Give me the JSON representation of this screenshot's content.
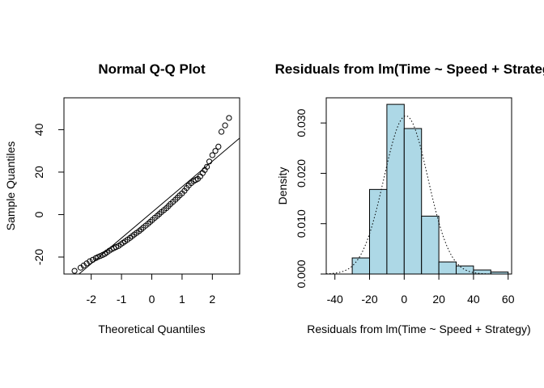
{
  "chart_data": [
    {
      "type": "scatter",
      "title": "Normal Q-Q Plot",
      "xlabel": "Theoretical Quantiles",
      "ylabel": "Sample Quantiles",
      "xlim": [
        -2.9,
        2.9
      ],
      "ylim": [
        -28,
        55
      ],
      "x_ticks": [
        -2,
        -1,
        0,
        1,
        2
      ],
      "x_tick_labels": [
        "-2",
        "-1",
        "0",
        "1",
        "2"
      ],
      "y_ticks": [
        -20,
        0,
        20,
        40
      ],
      "y_tick_labels": [
        "-20",
        "0",
        "20",
        "40"
      ],
      "grid": false,
      "qq_line": {
        "x": [
          -2.9,
          2.9
        ],
        "y": [
          -34,
          36
        ]
      },
      "points": [
        {
          "x": -2.55,
          "y": -26.5
        },
        {
          "x": -2.35,
          "y": -25
        },
        {
          "x": -2.25,
          "y": -24
        },
        {
          "x": -2.15,
          "y": -23
        },
        {
          "x": -2.05,
          "y": -22
        },
        {
          "x": -1.95,
          "y": -21.3
        },
        {
          "x": -1.85,
          "y": -20.5
        },
        {
          "x": -1.78,
          "y": -20
        },
        {
          "x": -1.7,
          "y": -19.5
        },
        {
          "x": -1.62,
          "y": -19
        },
        {
          "x": -1.55,
          "y": -18.5
        },
        {
          "x": -1.48,
          "y": -17.8
        },
        {
          "x": -1.4,
          "y": -17
        },
        {
          "x": -1.32,
          "y": -16.3
        },
        {
          "x": -1.25,
          "y": -15.8
        },
        {
          "x": -1.18,
          "y": -15.3
        },
        {
          "x": -1.1,
          "y": -14.8
        },
        {
          "x": -1.02,
          "y": -14
        },
        {
          "x": -0.95,
          "y": -13.3
        },
        {
          "x": -0.88,
          "y": -12.6
        },
        {
          "x": -0.8,
          "y": -11.8
        },
        {
          "x": -0.72,
          "y": -11
        },
        {
          "x": -0.65,
          "y": -10.2
        },
        {
          "x": -0.58,
          "y": -9.4
        },
        {
          "x": -0.5,
          "y": -8.6
        },
        {
          "x": -0.42,
          "y": -7.8
        },
        {
          "x": -0.35,
          "y": -7
        },
        {
          "x": -0.28,
          "y": -6.1
        },
        {
          "x": -0.2,
          "y": -5.2
        },
        {
          "x": -0.12,
          "y": -4.3
        },
        {
          "x": -0.05,
          "y": -3.4
        },
        {
          "x": 0.02,
          "y": -2.5
        },
        {
          "x": 0.1,
          "y": -1.5
        },
        {
          "x": 0.18,
          "y": -0.6
        },
        {
          "x": 0.25,
          "y": 0.3
        },
        {
          "x": 0.32,
          "y": 1.2
        },
        {
          "x": 0.4,
          "y": 2.1
        },
        {
          "x": 0.48,
          "y": 3
        },
        {
          "x": 0.55,
          "y": 4
        },
        {
          "x": 0.62,
          "y": 5
        },
        {
          "x": 0.7,
          "y": 6
        },
        {
          "x": 0.78,
          "y": 7
        },
        {
          "x": 0.85,
          "y": 8
        },
        {
          "x": 0.92,
          "y": 9
        },
        {
          "x": 1.0,
          "y": 10
        },
        {
          "x": 1.08,
          "y": 11.2
        },
        {
          "x": 1.15,
          "y": 12.5
        },
        {
          "x": 1.22,
          "y": 13.7
        },
        {
          "x": 1.3,
          "y": 14.8
        },
        {
          "x": 1.38,
          "y": 15.7
        },
        {
          "x": 1.45,
          "y": 16.3
        },
        {
          "x": 1.52,
          "y": 16.8
        },
        {
          "x": 1.6,
          "y": 18
        },
        {
          "x": 1.68,
          "y": 19.5
        },
        {
          "x": 1.75,
          "y": 21
        },
        {
          "x": 1.82,
          "y": 22.5
        },
        {
          "x": 1.9,
          "y": 25
        },
        {
          "x": 2.0,
          "y": 28
        },
        {
          "x": 2.1,
          "y": 30
        },
        {
          "x": 2.2,
          "y": 32
        },
        {
          "x": 2.3,
          "y": 39
        },
        {
          "x": 2.42,
          "y": 42
        },
        {
          "x": 2.55,
          "y": 45.5
        }
      ]
    },
    {
      "type": "bar",
      "title": "Residuals from lm(Time ~ Speed + Strategy)",
      "xlabel": "Residuals from lm(Time ~ Speed + Strategy)",
      "ylabel": "Density",
      "xlim": [
        -45,
        62
      ],
      "ylim": [
        0,
        0.035
      ],
      "x_ticks": [
        -40,
        -20,
        0,
        20,
        40,
        60
      ],
      "x_tick_labels": [
        "-40",
        "-20",
        "0",
        "20",
        "40",
        "60"
      ],
      "y_ticks": [
        0,
        0.01,
        0.02,
        0.03
      ],
      "y_tick_labels": [
        "0.000",
        "0.010",
        "0.020",
        "0.030"
      ],
      "grid": false,
      "bar_color": "#add8e6",
      "bins": [
        {
          "from": -30,
          "to": -20,
          "density": 0.0032
        },
        {
          "from": -20,
          "to": -10,
          "density": 0.0168
        },
        {
          "from": -10,
          "to": 0,
          "density": 0.0337
        },
        {
          "from": 0,
          "to": 10,
          "density": 0.0289
        },
        {
          "from": 10,
          "to": 20,
          "density": 0.0115
        },
        {
          "from": 20,
          "to": 30,
          "density": 0.0024
        },
        {
          "from": 30,
          "to": 40,
          "density": 0.0016
        },
        {
          "from": 40,
          "to": 50,
          "density": 0.0008
        },
        {
          "from": 50,
          "to": 60,
          "density": 0.0004
        }
      ],
      "density_curve": {
        "type": "normal",
        "mean": 1,
        "sd": 12.7,
        "style": "dotted"
      }
    }
  ]
}
